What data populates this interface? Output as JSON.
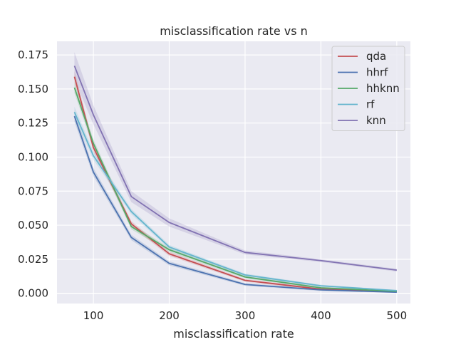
{
  "chart_data": {
    "type": "line",
    "title": "misclassification rate vs n",
    "xlabel": "misclassification rate",
    "ylabel": "",
    "xlim": [
      52,
      518
    ],
    "ylim": [
      -0.0075,
      0.185
    ],
    "xticks": [
      100,
      200,
      300,
      400,
      500
    ],
    "yticks": [
      0.0,
      0.025,
      0.05,
      0.075,
      0.1,
      0.125,
      0.15,
      0.175
    ],
    "ytick_labels": [
      "0.000",
      "0.025",
      "0.050",
      "0.075",
      "0.100",
      "0.125",
      "0.150",
      "0.175"
    ],
    "grid": true,
    "legend_position": "top-right",
    "x": [
      75,
      100,
      150,
      200,
      300,
      400,
      500
    ],
    "series": [
      {
        "name": "qda",
        "color": "#c44e52",
        "values": [
          0.159,
          0.107,
          0.051,
          0.029,
          0.0095,
          0.003,
          0.0015
        ],
        "band": [
          0.004,
          0.003,
          0.002,
          0.0015,
          0.001,
          0.0008,
          0.0005
        ]
      },
      {
        "name": "hhrf",
        "color": "#4c72b0",
        "values": [
          0.13,
          0.089,
          0.041,
          0.022,
          0.0065,
          0.0025,
          0.0008
        ],
        "band": [
          0.004,
          0.003,
          0.002,
          0.0015,
          0.001,
          0.0008,
          0.0005
        ]
      },
      {
        "name": "hhknn",
        "color": "#55a868",
        "values": [
          0.151,
          0.11,
          0.049,
          0.032,
          0.012,
          0.004,
          0.0015
        ],
        "band": [
          0.004,
          0.003,
          0.002,
          0.0015,
          0.001,
          0.0008,
          0.0005
        ]
      },
      {
        "name": "rf",
        "color": "#64b5cd",
        "values": [
          0.133,
          0.101,
          0.06,
          0.034,
          0.0135,
          0.0055,
          0.002
        ],
        "band": [
          0.004,
          0.003,
          0.002,
          0.0015,
          0.001,
          0.0008,
          0.0005
        ]
      },
      {
        "name": "knn",
        "color": "#8172b2",
        "values": [
          0.167,
          0.131,
          0.071,
          0.052,
          0.03,
          0.024,
          0.017
        ],
        "band": [
          0.01,
          0.007,
          0.004,
          0.003,
          0.0015,
          0.001,
          0.001
        ]
      }
    ]
  }
}
